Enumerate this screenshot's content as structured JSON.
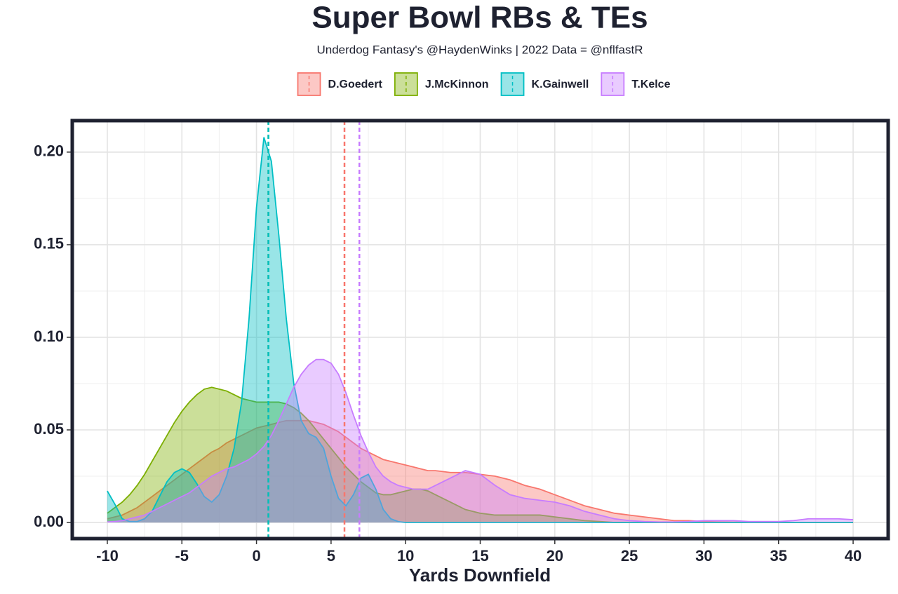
{
  "chart_data": {
    "type": "density",
    "title": "Super Bowl RBs & TEs",
    "subtitle": "Underdog Fantasy's @HaydenWinks | 2022 Data = @nflfastR",
    "x_label": "Yards Downfield",
    "legend": "top",
    "grid": true,
    "xlim": [
      -12.35,
      42.35
    ],
    "ylim": [
      -0.0087,
      0.217
    ],
    "xticks": [
      -10,
      -5,
      0,
      5,
      10,
      15,
      20,
      25,
      30,
      35,
      40
    ],
    "yticks": [
      {
        "value": 0,
        "label": "0.00"
      },
      {
        "value": 0.05,
        "label": "0.05"
      },
      {
        "value": 0.1,
        "label": "0.10"
      },
      {
        "value": 0.15,
        "label": "0.15"
      },
      {
        "value": 0.2,
        "label": "0.20"
      }
    ],
    "x": [
      -10,
      -9.5,
      -9,
      -8.5,
      -8,
      -7.5,
      -7,
      -6.5,
      -6,
      -5.5,
      -5,
      -4.5,
      -4,
      -3.5,
      -3,
      -2.5,
      -2,
      -1.5,
      -1,
      -0.5,
      0,
      0.5,
      1,
      1.5,
      2,
      2.5,
      3,
      3.5,
      4,
      4.5,
      5,
      5.5,
      6,
      6.5,
      7,
      7.5,
      8,
      8.5,
      9,
      9.5,
      10,
      10.5,
      11,
      11.5,
      12,
      13,
      14,
      15,
      16,
      17,
      18,
      19,
      20,
      21,
      22,
      23,
      24,
      25,
      26,
      27,
      28,
      29,
      30,
      31,
      32,
      33,
      34,
      35,
      36,
      37,
      38,
      39,
      40
    ],
    "series": [
      {
        "name": "D.Goedert",
        "color": "#F8766D",
        "mean": 5.9,
        "values": [
          0.002,
          0.003,
          0.004,
          0.006,
          0.008,
          0.011,
          0.014,
          0.017,
          0.02,
          0.023,
          0.026,
          0.029,
          0.032,
          0.035,
          0.038,
          0.04,
          0.043,
          0.045,
          0.047,
          0.049,
          0.051,
          0.052,
          0.053,
          0.054,
          0.055,
          0.055,
          0.055,
          0.055,
          0.054,
          0.053,
          0.051,
          0.049,
          0.046,
          0.043,
          0.04,
          0.038,
          0.036,
          0.034,
          0.033,
          0.032,
          0.031,
          0.03,
          0.029,
          0.028,
          0.028,
          0.027,
          0.027,
          0.026,
          0.025,
          0.023,
          0.02,
          0.018,
          0.015,
          0.012,
          0.009,
          0.007,
          0.005,
          0.004,
          0.003,
          0.002,
          0.001,
          0.001,
          0.0005,
          0.0003,
          0.0002,
          0.0001,
          0,
          0,
          0,
          0,
          0,
          0,
          0
        ]
      },
      {
        "name": "J.McKinnon",
        "color": "#7CAE00",
        "mean": 0.8,
        "values": [
          0.005,
          0.008,
          0.011,
          0.015,
          0.02,
          0.026,
          0.033,
          0.04,
          0.047,
          0.054,
          0.06,
          0.065,
          0.069,
          0.072,
          0.073,
          0.072,
          0.071,
          0.069,
          0.067,
          0.066,
          0.065,
          0.065,
          0.065,
          0.065,
          0.064,
          0.062,
          0.059,
          0.055,
          0.05,
          0.045,
          0.04,
          0.035,
          0.03,
          0.026,
          0.022,
          0.019,
          0.016,
          0.015,
          0.015,
          0.016,
          0.017,
          0.018,
          0.018,
          0.017,
          0.015,
          0.011,
          0.007,
          0.005,
          0.004,
          0.004,
          0.004,
          0.004,
          0.003,
          0.002,
          0.001,
          0.0005,
          0,
          0,
          0,
          0,
          0,
          0,
          0,
          0,
          0,
          0,
          0,
          0,
          0,
          0,
          0,
          0,
          0
        ]
      },
      {
        "name": "K.Gainwell",
        "color": "#00BFC4",
        "mean": 0.8,
        "values": [
          0.017,
          0.01,
          0.002,
          0.0005,
          0.0005,
          0.002,
          0.006,
          0.014,
          0.022,
          0.027,
          0.029,
          0.027,
          0.021,
          0.014,
          0.011,
          0.015,
          0.025,
          0.04,
          0.065,
          0.11,
          0.17,
          0.208,
          0.195,
          0.155,
          0.11,
          0.075,
          0.055,
          0.048,
          0.046,
          0.04,
          0.025,
          0.013,
          0.009,
          0.015,
          0.024,
          0.026,
          0.018,
          0.007,
          0.002,
          0.0005,
          0,
          0,
          0,
          0,
          0,
          0,
          0,
          0,
          0,
          0,
          0,
          0,
          0,
          0,
          0,
          0,
          0,
          0,
          0,
          0,
          0,
          0,
          0,
          0,
          0,
          0,
          0,
          0,
          0,
          0,
          0,
          0,
          0
        ]
      },
      {
        "name": "T.Kelce",
        "color": "#C77CFF",
        "mean": 6.9,
        "values": [
          0.0003,
          0.0005,
          0.001,
          0.002,
          0.003,
          0.004,
          0.006,
          0.008,
          0.01,
          0.012,
          0.014,
          0.016,
          0.019,
          0.022,
          0.025,
          0.027,
          0.029,
          0.03,
          0.032,
          0.034,
          0.037,
          0.041,
          0.047,
          0.055,
          0.064,
          0.073,
          0.08,
          0.085,
          0.088,
          0.088,
          0.086,
          0.08,
          0.07,
          0.058,
          0.047,
          0.038,
          0.03,
          0.025,
          0.022,
          0.02,
          0.019,
          0.018,
          0.018,
          0.018,
          0.02,
          0.024,
          0.028,
          0.026,
          0.02,
          0.015,
          0.013,
          0.012,
          0.011,
          0.009,
          0.006,
          0.004,
          0.002,
          0.001,
          0.0005,
          0.0003,
          0.0003,
          0.0005,
          0.001,
          0.001,
          0.001,
          0.0005,
          0.0005,
          0.0005,
          0.001,
          0.002,
          0.002,
          0.002,
          0.0015
        ]
      }
    ]
  }
}
